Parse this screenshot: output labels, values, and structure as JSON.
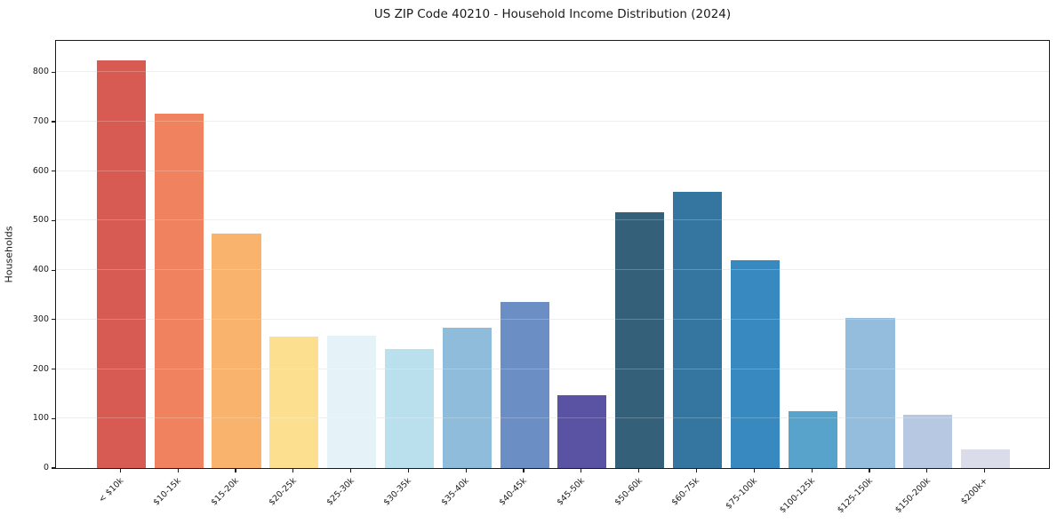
{
  "figure": {
    "title": "US ZIP Code 40210 - Household Income Distribution (2024)"
  },
  "chart_data": {
    "type": "bar",
    "title": "US ZIP Code 40210 - Household Income Distribution (2024)",
    "xlabel": "",
    "ylabel": "Households",
    "categories": [
      "< $10k",
      "$10-15k",
      "$15-20k",
      "$20-25k",
      "$25-30k",
      "$30-35k",
      "$35-40k",
      "$40-45k",
      "$45-50k",
      "$50-60k",
      "$60-75k",
      "$75-100k",
      "$100-125k",
      "$125-150k",
      "$150-200k",
      "$200k+"
    ],
    "values": [
      824,
      716,
      474,
      266,
      268,
      240,
      284,
      336,
      147,
      516,
      558,
      420,
      115,
      303,
      108,
      38
    ],
    "bar_colors": [
      "#d85b53",
      "#f08260",
      "#f9b36c",
      "#fcdf8f",
      "#e5f2f7",
      "#badfed",
      "#8fbcdb",
      "#6b8ec5",
      "#5a53a4",
      "#35607a",
      "#3576a1",
      "#3789bf",
      "#58a3cb",
      "#94bcdc",
      "#b7c9e2",
      "#dadde9"
    ],
    "ylim": [
      0,
      865
    ],
    "yticks": [
      0,
      100,
      200,
      300,
      400,
      500,
      600,
      700,
      800
    ],
    "grid": "horizontal",
    "gridline_color": "#e9e9e9",
    "legend": "none",
    "axis_color": "#1a1a1a",
    "text_color": "#1a1a1a"
  }
}
